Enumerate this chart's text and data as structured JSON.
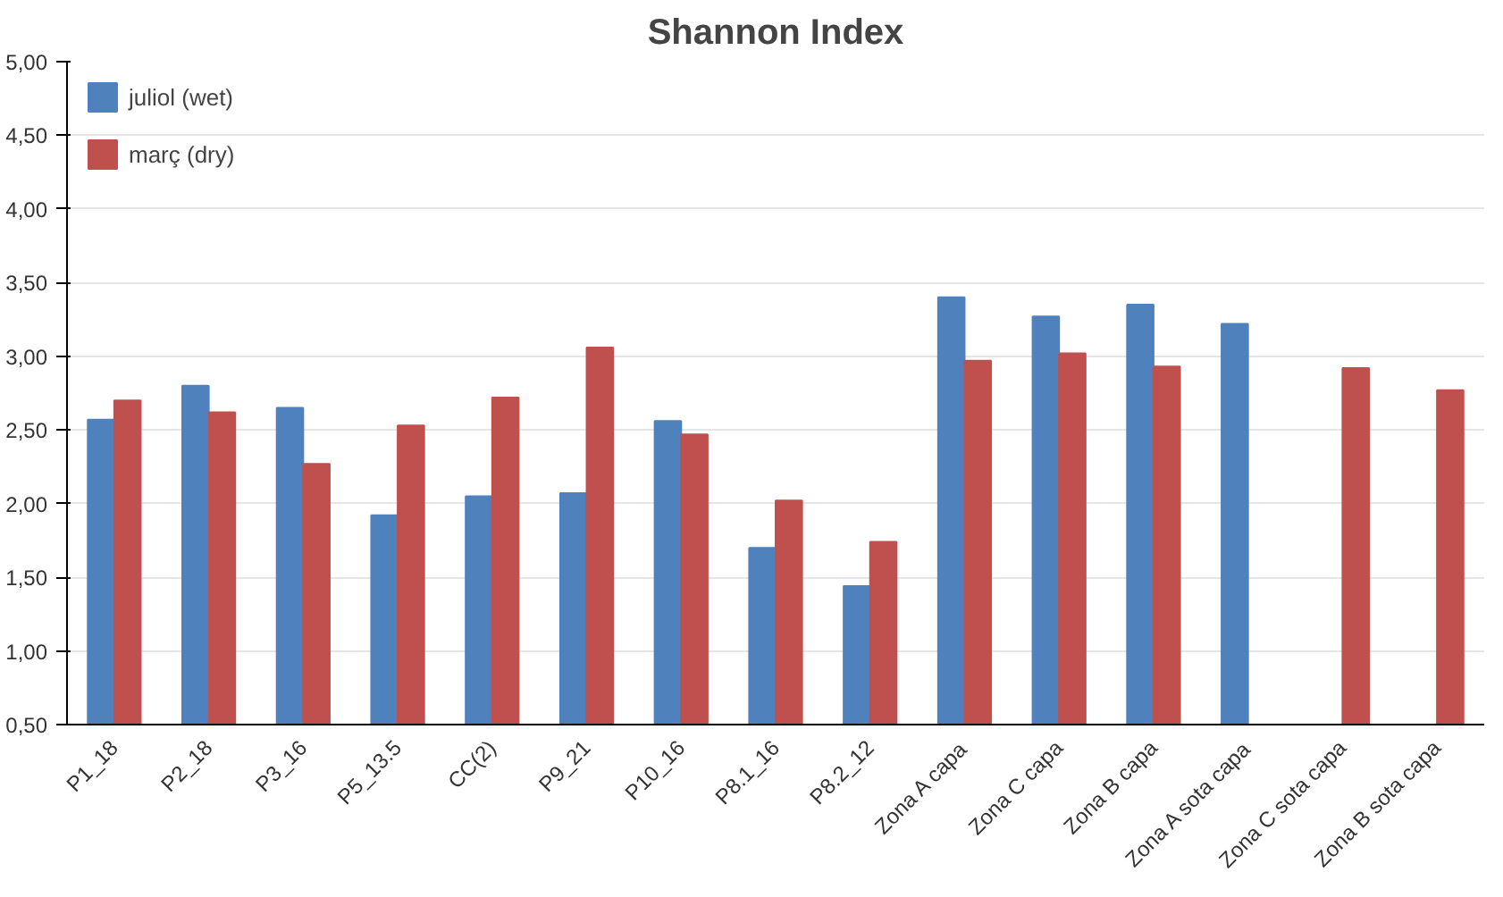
{
  "chart_data": {
    "type": "bar",
    "title": "Shannon Index",
    "categories": [
      "P1_18",
      "P2_18",
      "P3_16",
      "P5_13.5",
      "CC(2)",
      "P9_21",
      "P10_16",
      "P8.1_16",
      "P8.2_12",
      "Zona A capa",
      "Zona C capa",
      "Zona B capa",
      "Zona A sota capa",
      "Zona C sota capa",
      "Zona B sota capa"
    ],
    "series": [
      {
        "name": "juliol (wet)",
        "color": "#4f81bd",
        "values": [
          2.57,
          2.8,
          2.65,
          1.92,
          2.05,
          2.07,
          2.56,
          1.7,
          1.44,
          3.4,
          3.27,
          3.35,
          3.22,
          null,
          null
        ]
      },
      {
        "name": "març (dry)",
        "color": "#c0504d",
        "values": [
          2.7,
          2.62,
          2.27,
          2.53,
          2.72,
          3.06,
          2.47,
          2.02,
          1.74,
          2.97,
          3.02,
          2.93,
          null,
          2.92,
          2.77
        ]
      }
    ],
    "ylim": [
      0.5,
      5.0
    ],
    "yticks": [
      {
        "value": 0.5,
        "label": "0,50"
      },
      {
        "value": 1.0,
        "label": "1,00"
      },
      {
        "value": 1.5,
        "label": "1,50"
      },
      {
        "value": 2.0,
        "label": "2,00"
      },
      {
        "value": 2.5,
        "label": "2,50"
      },
      {
        "value": 3.0,
        "label": "3,00"
      },
      {
        "value": 3.5,
        "label": "3,50"
      },
      {
        "value": 4.0,
        "label": "4,00"
      },
      {
        "value": 4.5,
        "label": "4,50"
      },
      {
        "value": 5.0,
        "label": "5,00"
      }
    ],
    "grid": "y",
    "legend": "top left"
  }
}
